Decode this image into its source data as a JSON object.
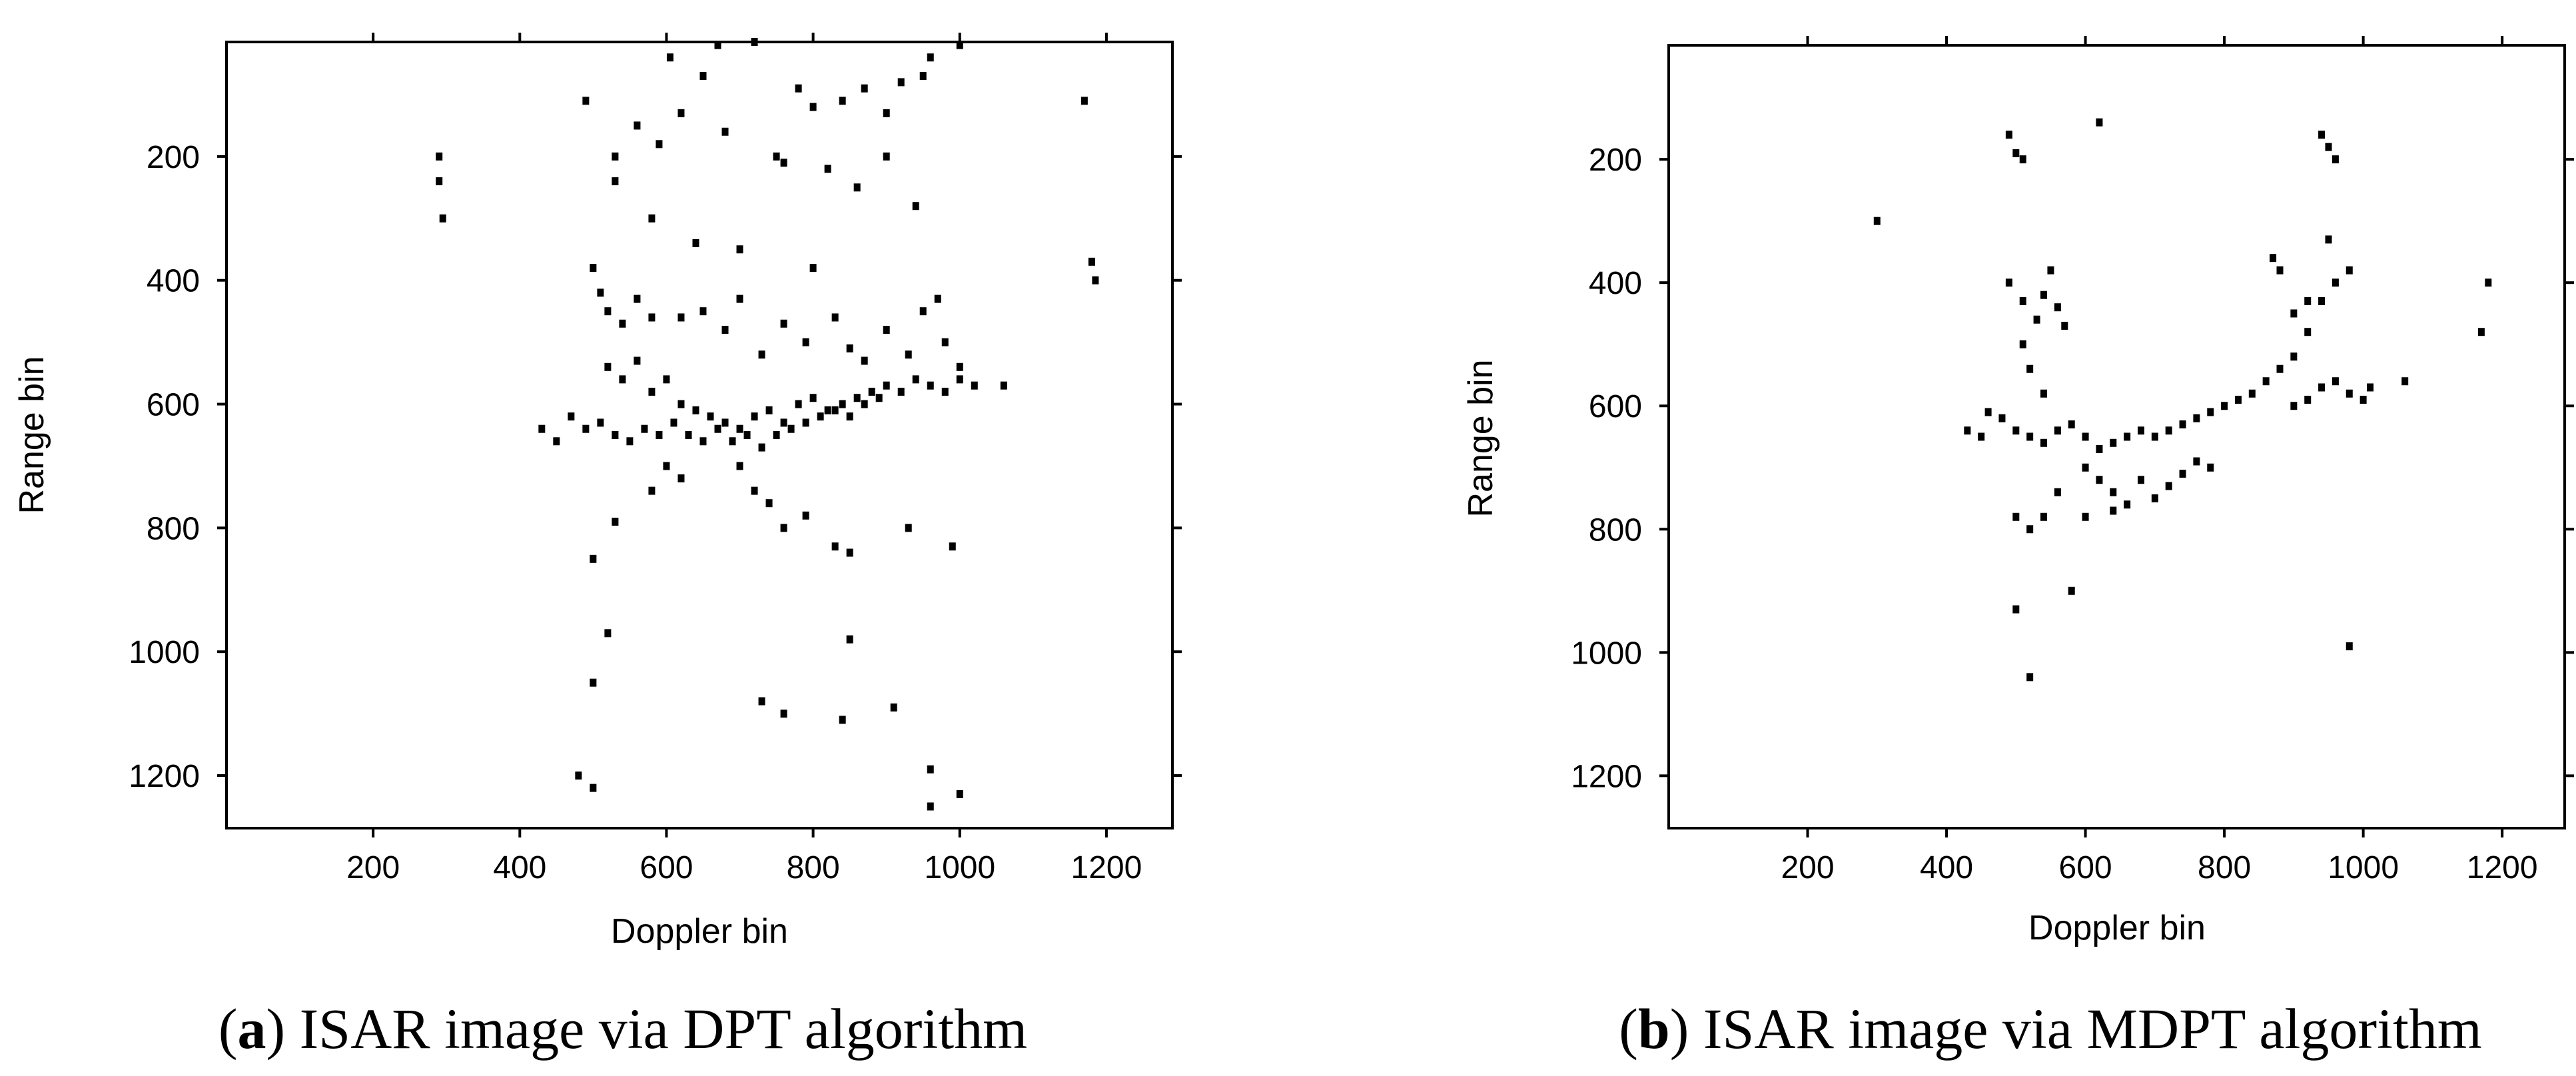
{
  "chart_data": [
    {
      "type": "scatter",
      "caption_letter": "a",
      "caption_text": "ISAR image via DPT algorithm",
      "xlabel": "Doppler bin",
      "ylabel": "Range bin",
      "xlim": [
        0,
        1290
      ],
      "ylim": [
        1285,
        15
      ],
      "y_inverted": true,
      "xticks": [
        200,
        400,
        600,
        800,
        1000,
        1200
      ],
      "yticks": [
        200,
        400,
        600,
        800,
        1000,
        1200
      ],
      "grid": false,
      "color": "#000000",
      "points": [
        [
          605,
          40
        ],
        [
          670,
          20
        ],
        [
          720,
          15
        ],
        [
          650,
          70
        ],
        [
          490,
          110
        ],
        [
          560,
          150
        ],
        [
          590,
          180
        ],
        [
          530,
          200
        ],
        [
          620,
          130
        ],
        [
          680,
          160
        ],
        [
          750,
          200
        ],
        [
          780,
          90
        ],
        [
          800,
          120
        ],
        [
          840,
          110
        ],
        [
          870,
          90
        ],
        [
          900,
          130
        ],
        [
          920,
          80
        ],
        [
          950,
          70
        ],
        [
          960,
          40
        ],
        [
          1000,
          20
        ],
        [
          530,
          240
        ],
        [
          580,
          300
        ],
        [
          640,
          340
        ],
        [
          700,
          350
        ],
        [
          760,
          210
        ],
        [
          820,
          220
        ],
        [
          860,
          250
        ],
        [
          900,
          200
        ],
        [
          940,
          280
        ],
        [
          1170,
          110
        ],
        [
          290,
          200
        ],
        [
          290,
          240
        ],
        [
          295,
          300
        ],
        [
          1180,
          370
        ],
        [
          1185,
          400
        ],
        [
          500,
          380
        ],
        [
          510,
          420
        ],
        [
          520,
          450
        ],
        [
          540,
          470
        ],
        [
          560,
          430
        ],
        [
          580,
          460
        ],
        [
          620,
          460
        ],
        [
          650,
          450
        ],
        [
          680,
          480
        ],
        [
          700,
          430
        ],
        [
          730,
          520
        ],
        [
          760,
          470
        ],
        [
          790,
          500
        ],
        [
          800,
          380
        ],
        [
          830,
          460
        ],
        [
          850,
          510
        ],
        [
          870,
          530
        ],
        [
          900,
          480
        ],
        [
          930,
          520
        ],
        [
          950,
          450
        ],
        [
          970,
          430
        ],
        [
          980,
          500
        ],
        [
          1000,
          540
        ],
        [
          520,
          540
        ],
        [
          540,
          560
        ],
        [
          560,
          530
        ],
        [
          580,
          580
        ],
        [
          600,
          560
        ],
        [
          620,
          600
        ],
        [
          640,
          610
        ],
        [
          660,
          620
        ],
        [
          680,
          630
        ],
        [
          700,
          640
        ],
        [
          720,
          620
        ],
        [
          740,
          610
        ],
        [
          760,
          630
        ],
        [
          780,
          600
        ],
        [
          800,
          590
        ],
        [
          820,
          610
        ],
        [
          840,
          600
        ],
        [
          860,
          590
        ],
        [
          880,
          580
        ],
        [
          900,
          570
        ],
        [
          920,
          580
        ],
        [
          940,
          560
        ],
        [
          960,
          570
        ],
        [
          980,
          580
        ],
        [
          1000,
          560
        ],
        [
          1020,
          570
        ],
        [
          1060,
          570
        ],
        [
          430,
          640
        ],
        [
          450,
          660
        ],
        [
          470,
          620
        ],
        [
          490,
          640
        ],
        [
          510,
          630
        ],
        [
          530,
          650
        ],
        [
          550,
          660
        ],
        [
          570,
          640
        ],
        [
          590,
          650
        ],
        [
          610,
          630
        ],
        [
          630,
          650
        ],
        [
          650,
          660
        ],
        [
          670,
          640
        ],
        [
          690,
          660
        ],
        [
          710,
          650
        ],
        [
          730,
          670
        ],
        [
          750,
          650
        ],
        [
          770,
          640
        ],
        [
          790,
          630
        ],
        [
          810,
          620
        ],
        [
          830,
          610
        ],
        [
          850,
          620
        ],
        [
          870,
          600
        ],
        [
          890,
          590
        ],
        [
          600,
          700
        ],
        [
          620,
          720
        ],
        [
          580,
          740
        ],
        [
          700,
          700
        ],
        [
          720,
          740
        ],
        [
          740,
          760
        ],
        [
          760,
          800
        ],
        [
          790,
          780
        ],
        [
          830,
          830
        ],
        [
          850,
          840
        ],
        [
          930,
          800
        ],
        [
          990,
          830
        ],
        [
          530,
          790
        ],
        [
          500,
          850
        ],
        [
          520,
          970
        ],
        [
          500,
          1050
        ],
        [
          730,
          1080
        ],
        [
          760,
          1100
        ],
        [
          840,
          1110
        ],
        [
          850,
          980
        ],
        [
          910,
          1090
        ],
        [
          960,
          1190
        ],
        [
          1000,
          1230
        ],
        [
          480,
          1200
        ],
        [
          500,
          1220
        ],
        [
          960,
          1250
        ]
      ]
    },
    {
      "type": "scatter",
      "caption_letter": "b",
      "caption_text": "ISAR image via MDPT algorithm",
      "xlabel": "Doppler bin",
      "ylabel": "Range bin",
      "xlim": [
        0,
        1290
      ],
      "ylim": [
        1285,
        15
      ],
      "y_inverted": true,
      "xticks": [
        200,
        400,
        600,
        800,
        1000,
        1200
      ],
      "yticks": [
        200,
        400,
        600,
        800,
        1000,
        1200
      ],
      "grid": false,
      "color": "#000000",
      "points": [
        [
          490,
          160
        ],
        [
          500,
          190
        ],
        [
          510,
          200
        ],
        [
          300,
          300
        ],
        [
          620,
          140
        ],
        [
          940,
          160
        ],
        [
          950,
          180
        ],
        [
          960,
          200
        ],
        [
          1170,
          480
        ],
        [
          1180,
          400
        ],
        [
          490,
          400
        ],
        [
          510,
          430
        ],
        [
          530,
          460
        ],
        [
          540,
          420
        ],
        [
          550,
          380
        ],
        [
          560,
          440
        ],
        [
          570,
          470
        ],
        [
          510,
          500
        ],
        [
          520,
          540
        ],
        [
          540,
          580
        ],
        [
          460,
          610
        ],
        [
          480,
          620
        ],
        [
          500,
          640
        ],
        [
          520,
          650
        ],
        [
          540,
          660
        ],
        [
          560,
          640
        ],
        [
          580,
          630
        ],
        [
          600,
          650
        ],
        [
          620,
          670
        ],
        [
          640,
          660
        ],
        [
          660,
          650
        ],
        [
          680,
          640
        ],
        [
          700,
          650
        ],
        [
          720,
          640
        ],
        [
          740,
          630
        ],
        [
          760,
          620
        ],
        [
          780,
          610
        ],
        [
          800,
          600
        ],
        [
          820,
          590
        ],
        [
          840,
          580
        ],
        [
          860,
          560
        ],
        [
          880,
          540
        ],
        [
          900,
          520
        ],
        [
          920,
          480
        ],
        [
          940,
          430
        ],
        [
          960,
          400
        ],
        [
          980,
          380
        ],
        [
          900,
          600
        ],
        [
          920,
          590
        ],
        [
          940,
          570
        ],
        [
          960,
          560
        ],
        [
          980,
          580
        ],
        [
          1000,
          590
        ],
        [
          1010,
          570
        ],
        [
          1060,
          560
        ],
        [
          870,
          360
        ],
        [
          880,
          380
        ],
        [
          900,
          450
        ],
        [
          920,
          430
        ],
        [
          950,
          330
        ],
        [
          600,
          700
        ],
        [
          620,
          720
        ],
        [
          640,
          740
        ],
        [
          660,
          760
        ],
        [
          680,
          720
        ],
        [
          700,
          750
        ],
        [
          720,
          730
        ],
        [
          740,
          710
        ],
        [
          760,
          690
        ],
        [
          780,
          700
        ],
        [
          560,
          740
        ],
        [
          540,
          780
        ],
        [
          520,
          800
        ],
        [
          500,
          780
        ],
        [
          600,
          780
        ],
        [
          640,
          770
        ],
        [
          450,
          650
        ],
        [
          430,
          640
        ],
        [
          580,
          900
        ],
        [
          520,
          1040
        ],
        [
          500,
          930
        ],
        [
          980,
          990
        ]
      ]
    }
  ]
}
